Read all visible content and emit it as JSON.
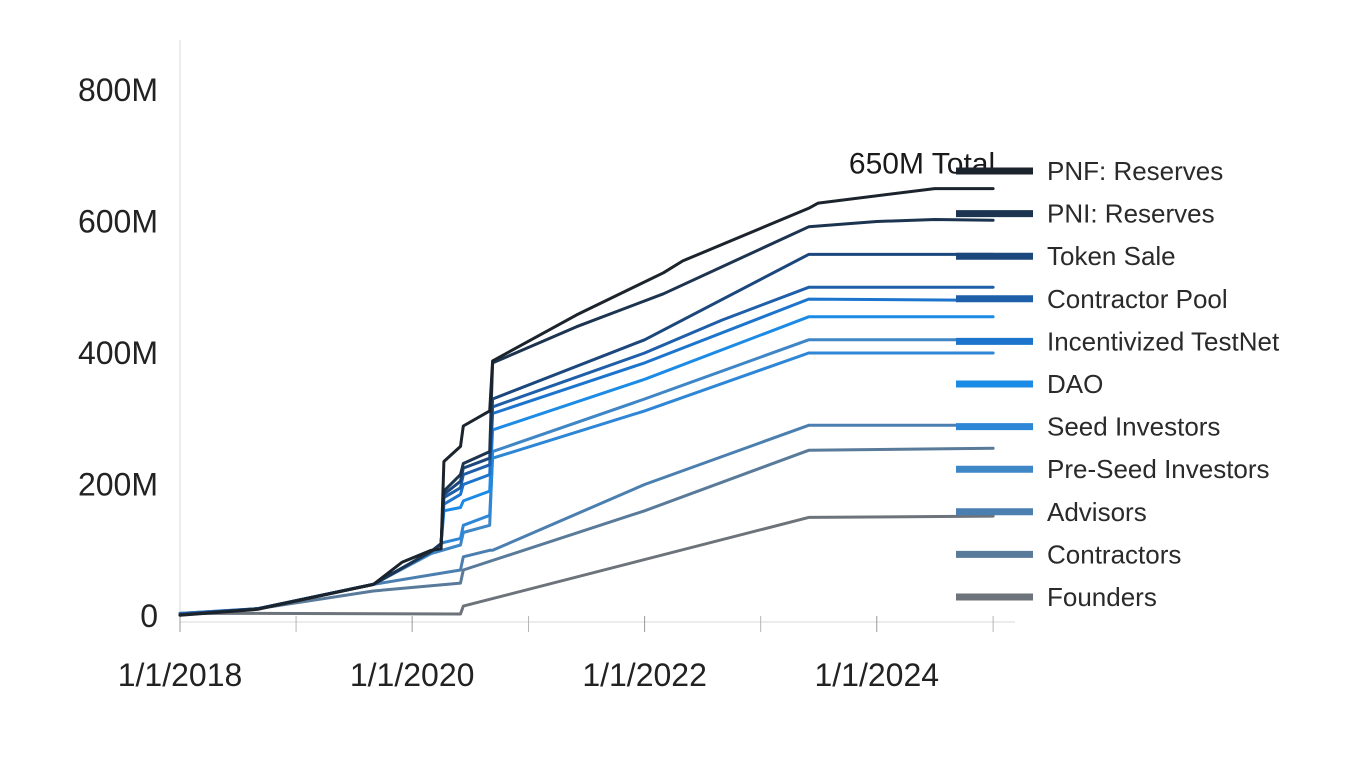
{
  "chart_data": {
    "type": "line",
    "title": "",
    "xlabel": "",
    "ylabel": "",
    "x_range": [
      "2018-01-01",
      "2025-02-01"
    ],
    "ylim": [
      0,
      800
    ],
    "y_unit": "M",
    "y_ticks": [
      {
        "value": 0,
        "label": "0"
      },
      {
        "value": 200,
        "label": "200M"
      },
      {
        "value": 400,
        "label": "400M"
      },
      {
        "value": 600,
        "label": "600M"
      },
      {
        "value": 800,
        "label": "800M"
      }
    ],
    "x_ticks": [
      {
        "date": "2018-01-01",
        "label": "1/1/2018"
      },
      {
        "date": "2020-01-01",
        "label": "1/1/2020"
      },
      {
        "date": "2022-01-01",
        "label": "1/1/2022"
      },
      {
        "date": "2024-01-01",
        "label": "1/1/2024"
      }
    ],
    "x_minor_ticks": [
      "2019-01-01",
      "2021-01-01",
      "2023-01-01",
      "2025-01-01"
    ],
    "reference_line": {
      "value": 650,
      "label": "650M Total",
      "color": "#c9e265"
    },
    "legend_position": "right",
    "grid": false,
    "series": [
      {
        "name": "PNF: Reserves",
        "color": "#1b232c",
        "points": [
          [
            "2018-01-01",
            1
          ],
          [
            "2018-09-01",
            10
          ],
          [
            "2019-09-01",
            48
          ],
          [
            "2019-12-01",
            82
          ],
          [
            "2020-03-01",
            100
          ],
          [
            "2020-04-01",
            102
          ],
          [
            "2020-04-10",
            235
          ],
          [
            "2020-06-01",
            258
          ],
          [
            "2020-06-10",
            289
          ],
          [
            "2020-09-01",
            312
          ],
          [
            "2020-09-10",
            388
          ],
          [
            "2021-06-01",
            458
          ],
          [
            "2022-03-01",
            522
          ],
          [
            "2022-05-01",
            540
          ],
          [
            "2023-06-01",
            620
          ],
          [
            "2023-07-01",
            628
          ],
          [
            "2024-07-01",
            650
          ],
          [
            "2025-01-01",
            650
          ]
        ]
      },
      {
        "name": "PNI: Reserves",
        "color": "#1d3451",
        "points": [
          [
            "2018-01-01",
            2
          ],
          [
            "2018-09-01",
            11
          ],
          [
            "2019-09-01",
            48
          ],
          [
            "2020-03-01",
            98
          ],
          [
            "2020-04-01",
            110
          ],
          [
            "2020-04-10",
            190
          ],
          [
            "2020-06-01",
            215
          ],
          [
            "2020-06-10",
            232
          ],
          [
            "2020-09-01",
            250
          ],
          [
            "2020-09-10",
            385
          ],
          [
            "2021-06-01",
            440
          ],
          [
            "2022-03-01",
            490
          ],
          [
            "2023-06-01",
            592
          ],
          [
            "2024-01-01",
            600
          ],
          [
            "2024-07-01",
            603
          ],
          [
            "2025-01-01",
            602
          ]
        ]
      },
      {
        "name": "Token Sale",
        "color": "#1c477c",
        "points": [
          [
            "2018-01-01",
            2
          ],
          [
            "2018-09-01",
            11
          ],
          [
            "2019-09-01",
            48
          ],
          [
            "2020-03-01",
            98
          ],
          [
            "2020-04-01",
            110
          ],
          [
            "2020-04-10",
            185
          ],
          [
            "2020-06-01",
            205
          ],
          [
            "2020-06-10",
            225
          ],
          [
            "2020-09-01",
            240
          ],
          [
            "2020-09-10",
            330
          ],
          [
            "2022-01-01",
            420
          ],
          [
            "2023-06-01",
            550
          ],
          [
            "2025-01-01",
            550
          ]
        ]
      },
      {
        "name": "Contractor Pool",
        "color": "#1f5ea8",
        "points": [
          [
            "2018-01-01",
            3
          ],
          [
            "2018-09-01",
            11
          ],
          [
            "2019-09-01",
            48
          ],
          [
            "2020-03-01",
            98
          ],
          [
            "2020-04-01",
            110
          ],
          [
            "2020-04-10",
            180
          ],
          [
            "2020-06-01",
            195
          ],
          [
            "2020-06-10",
            215
          ],
          [
            "2020-09-01",
            230
          ],
          [
            "2020-09-10",
            318
          ],
          [
            "2022-01-01",
            400
          ],
          [
            "2022-09-01",
            450
          ],
          [
            "2023-06-01",
            500
          ],
          [
            "2025-01-01",
            500
          ]
        ]
      },
      {
        "name": "Incentivized TestNet",
        "color": "#1d74cc",
        "points": [
          [
            "2018-01-01",
            3
          ],
          [
            "2018-09-01",
            11
          ],
          [
            "2019-09-01",
            48
          ],
          [
            "2020-03-01",
            98
          ],
          [
            "2020-04-01",
            110
          ],
          [
            "2020-04-10",
            170
          ],
          [
            "2020-06-01",
            185
          ],
          [
            "2020-06-10",
            200
          ],
          [
            "2020-09-01",
            215
          ],
          [
            "2020-09-10",
            308
          ],
          [
            "2022-01-01",
            385
          ],
          [
            "2023-06-01",
            482
          ],
          [
            "2025-01-01",
            480
          ]
        ]
      },
      {
        "name": "DAO",
        "color": "#1c8be6",
        "points": [
          [
            "2018-01-01",
            3
          ],
          [
            "2018-09-01",
            11
          ],
          [
            "2019-09-01",
            48
          ],
          [
            "2020-03-01",
            98
          ],
          [
            "2020-04-01",
            110
          ],
          [
            "2020-04-10",
            160
          ],
          [
            "2020-06-01",
            165
          ],
          [
            "2020-06-10",
            175
          ],
          [
            "2020-09-01",
            190
          ],
          [
            "2020-09-10",
            283
          ],
          [
            "2022-01-01",
            360
          ],
          [
            "2023-06-01",
            455
          ],
          [
            "2025-01-01",
            455
          ]
        ]
      },
      {
        "name": "Seed Investors",
        "color": "#2e86d6",
        "points": [
          [
            "2018-01-01",
            3
          ],
          [
            "2018-09-01",
            11
          ],
          [
            "2019-09-01",
            48
          ],
          [
            "2020-03-01",
            98
          ],
          [
            "2020-04-01",
            110
          ],
          [
            "2020-04-10",
            112
          ],
          [
            "2020-06-01",
            118
          ],
          [
            "2020-06-10",
            138
          ],
          [
            "2020-09-01",
            153
          ],
          [
            "2020-09-10",
            240
          ],
          [
            "2022-01-01",
            312
          ],
          [
            "2023-06-01",
            400
          ],
          [
            "2025-01-01",
            400
          ]
        ]
      },
      {
        "name": "Pre-Seed Investors",
        "color": "#3f86c6",
        "points": [
          [
            "2018-01-01",
            3
          ],
          [
            "2018-09-01",
            11
          ],
          [
            "2019-09-01",
            48
          ],
          [
            "2020-03-01",
            95
          ],
          [
            "2020-06-01",
            108
          ],
          [
            "2020-06-10",
            127
          ],
          [
            "2020-09-01",
            138
          ],
          [
            "2020-09-10",
            250
          ],
          [
            "2022-01-01",
            330
          ],
          [
            "2023-06-01",
            420
          ],
          [
            "2025-01-01",
            420
          ]
        ]
      },
      {
        "name": "Advisors",
        "color": "#4a7fb0",
        "points": [
          [
            "2018-01-01",
            4
          ],
          [
            "2018-09-01",
            11
          ],
          [
            "2019-09-01",
            48
          ],
          [
            "2020-06-01",
            70
          ],
          [
            "2020-06-10",
            90
          ],
          [
            "2020-09-01",
            100
          ],
          [
            "2020-09-10",
            100
          ],
          [
            "2022-01-01",
            200
          ],
          [
            "2023-06-01",
            290
          ],
          [
            "2025-01-01",
            290
          ]
        ]
      },
      {
        "name": "Contractors",
        "color": "#597a99",
        "points": [
          [
            "2018-01-01",
            4
          ],
          [
            "2018-09-01",
            11
          ],
          [
            "2019-09-01",
            38
          ],
          [
            "2020-06-01",
            50
          ],
          [
            "2020-06-10",
            70
          ],
          [
            "2022-01-01",
            160
          ],
          [
            "2023-06-01",
            252
          ],
          [
            "2025-01-01",
            255
          ]
        ]
      },
      {
        "name": "Founders",
        "color": "#6d737a",
        "points": [
          [
            "2018-01-01",
            4
          ],
          [
            "2018-09-01",
            4
          ],
          [
            "2020-06-01",
            3
          ],
          [
            "2020-06-10",
            15
          ],
          [
            "2023-06-01",
            150
          ],
          [
            "2025-01-01",
            152
          ]
        ]
      }
    ]
  }
}
